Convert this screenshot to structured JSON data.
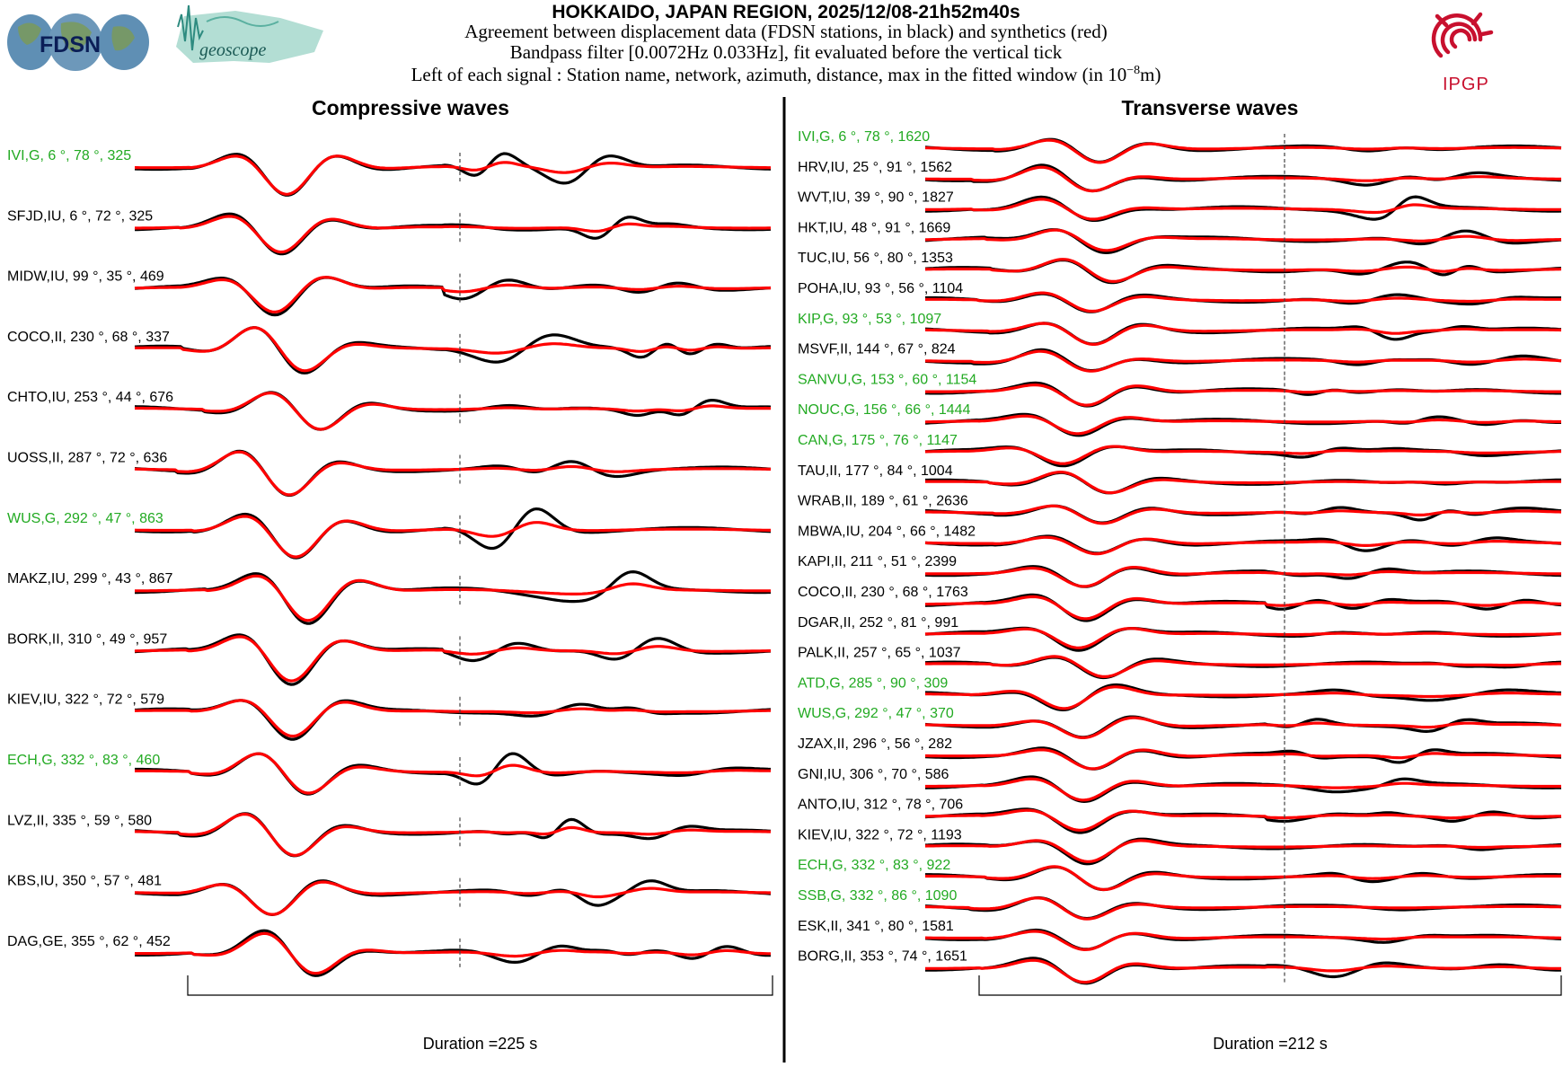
{
  "header": {
    "title": "HOKKAIDO, JAPAN REGION, 2025/12/08-21h52m40s",
    "line1": "Agreement between displacement data (FDSN stations, in black) and synthetics (red)",
    "line2": "Bandpass filter [0.0072Hz 0.033Hz], fit evaluated before the vertical tick",
    "line3_prefix": "Left of each signal : Station name, network, azimuth, distance, max in the fitted window (in 10",
    "line3_exp": "−8",
    "line3_suffix": "m)"
  },
  "logos": {
    "fdsn": "FDSN",
    "geoscope": "geoscope",
    "ipgp": "IPGP"
  },
  "colors": {
    "data": "#000000",
    "synthetic": "#ff0000",
    "green_label": "#22aa22",
    "black_label": "#000000",
    "ipgp": "#c8102e"
  },
  "chart_data": [
    {
      "type": "line",
      "title": "Compressive waves",
      "duration_label": "Duration =225 s",
      "duration_s": 225,
      "series_names": [
        "data (black)",
        "synthetics (red)"
      ],
      "stations": [
        {
          "label": "IVI,G, 6 °, 78 °, 325",
          "name": "IVI",
          "network": "G",
          "azimuth": 6,
          "distance": 78,
          "max": 325,
          "green": true
        },
        {
          "label": "SFJD,IU, 6 °, 72 °, 325",
          "name": "SFJD",
          "network": "IU",
          "azimuth": 6,
          "distance": 72,
          "max": 325,
          "green": false
        },
        {
          "label": "MIDW,IU, 99 °, 35 °, 469",
          "name": "MIDW",
          "network": "IU",
          "azimuth": 99,
          "distance": 35,
          "max": 469,
          "green": false
        },
        {
          "label": "COCO,II, 230 °, 68 °, 337",
          "name": "COCO",
          "network": "II",
          "azimuth": 230,
          "distance": 68,
          "max": 337,
          "green": false
        },
        {
          "label": "CHTO,IU, 253 °, 44 °, 676",
          "name": "CHTO",
          "network": "IU",
          "azimuth": 253,
          "distance": 44,
          "max": 676,
          "green": false
        },
        {
          "label": "UOSS,II, 287 °, 72 °, 636",
          "name": "UOSS",
          "network": "II",
          "azimuth": 287,
          "distance": 72,
          "max": 636,
          "green": false
        },
        {
          "label": "WUS,G, 292 °, 47 °, 863",
          "name": "WUS",
          "network": "G",
          "azimuth": 292,
          "distance": 47,
          "max": 863,
          "green": true
        },
        {
          "label": "MAKZ,IU, 299 °, 43 °, 867",
          "name": "MAKZ",
          "network": "IU",
          "azimuth": 299,
          "distance": 43,
          "max": 867,
          "green": false
        },
        {
          "label": "BORK,II, 310 °, 49 °, 957",
          "name": "BORK",
          "network": "II",
          "azimuth": 310,
          "distance": 49,
          "max": 957,
          "green": false
        },
        {
          "label": "KIEV,IU, 322 °, 72 °, 579",
          "name": "KIEV",
          "network": "IU",
          "azimuth": 322,
          "distance": 72,
          "max": 579,
          "green": false
        },
        {
          "label": "ECH,G, 332 °, 83 °, 460",
          "name": "ECH",
          "network": "G",
          "azimuth": 332,
          "distance": 83,
          "max": 460,
          "green": true
        },
        {
          "label": "LVZ,II, 335 °, 59 °, 580",
          "name": "LVZ",
          "network": "II",
          "azimuth": 335,
          "distance": 59,
          "max": 580,
          "green": false
        },
        {
          "label": "KBS,IU, 350 °, 57 °, 481",
          "name": "KBS",
          "network": "IU",
          "azimuth": 350,
          "distance": 57,
          "max": 481,
          "green": false
        },
        {
          "label": "DAG,GE, 355 °, 62 °, 452",
          "name": "DAG",
          "network": "GE",
          "azimuth": 355,
          "distance": 62,
          "max": 452,
          "green": false
        }
      ]
    },
    {
      "type": "line",
      "title": "Transverse waves",
      "duration_label": "Duration =212 s",
      "duration_s": 212,
      "series_names": [
        "data (black)",
        "synthetics (red)"
      ],
      "stations": [
        {
          "label": "IVI,G, 6 °, 78 °, 1620",
          "name": "IVI",
          "network": "G",
          "azimuth": 6,
          "distance": 78,
          "max": 1620,
          "green": true
        },
        {
          "label": "HRV,IU, 25 °, 91 °, 1562",
          "name": "HRV",
          "network": "IU",
          "azimuth": 25,
          "distance": 91,
          "max": 1562,
          "green": false
        },
        {
          "label": "WVT,IU, 39 °, 90 °, 1827",
          "name": "WVT",
          "network": "IU",
          "azimuth": 39,
          "distance": 90,
          "max": 1827,
          "green": false
        },
        {
          "label": "HKT,IU, 48 °, 91 °, 1669",
          "name": "HKT",
          "network": "IU",
          "azimuth": 48,
          "distance": 91,
          "max": 1669,
          "green": false
        },
        {
          "label": "TUC,IU, 56 °, 80 °, 1353",
          "name": "TUC",
          "network": "IU",
          "azimuth": 56,
          "distance": 80,
          "max": 1353,
          "green": false
        },
        {
          "label": "POHA,IU, 93 °, 56 °, 1104",
          "name": "POHA",
          "network": "IU",
          "azimuth": 93,
          "distance": 56,
          "max": 1104,
          "green": false
        },
        {
          "label": "KIP,G, 93 °, 53 °, 1097",
          "name": "KIP",
          "network": "G",
          "azimuth": 93,
          "distance": 53,
          "max": 1097,
          "green": true
        },
        {
          "label": "MSVF,II, 144 °, 67 °, 824",
          "name": "MSVF",
          "network": "II",
          "azimuth": 144,
          "distance": 67,
          "max": 824,
          "green": false
        },
        {
          "label": "SANVU,G, 153 °, 60 °, 1154",
          "name": "SANVU",
          "network": "G",
          "azimuth": 153,
          "distance": 60,
          "max": 1154,
          "green": true
        },
        {
          "label": "NOUC,G, 156 °, 66 °, 1444",
          "name": "NOUC",
          "network": "G",
          "azimuth": 156,
          "distance": 66,
          "max": 1444,
          "green": true
        },
        {
          "label": "CAN,G, 175 °, 76 °, 1147",
          "name": "CAN",
          "network": "G",
          "azimuth": 175,
          "distance": 76,
          "max": 1147,
          "green": true
        },
        {
          "label": "TAU,II, 177 °, 84 °, 1004",
          "name": "TAU",
          "network": "II",
          "azimuth": 177,
          "distance": 84,
          "max": 1004,
          "green": false
        },
        {
          "label": "WRAB,II, 189 °, 61 °, 2636",
          "name": "WRAB",
          "network": "II",
          "azimuth": 189,
          "distance": 61,
          "max": 2636,
          "green": false
        },
        {
          "label": "MBWA,IU, 204 °, 66 °, 1482",
          "name": "MBWA",
          "network": "IU",
          "azimuth": 204,
          "distance": 66,
          "max": 1482,
          "green": false
        },
        {
          "label": "KAPI,II, 211 °, 51 °, 2399",
          "name": "KAPI",
          "network": "II",
          "azimuth": 211,
          "distance": 51,
          "max": 2399,
          "green": false
        },
        {
          "label": "COCO,II, 230 °, 68 °, 1763",
          "name": "COCO",
          "network": "II",
          "azimuth": 230,
          "distance": 68,
          "max": 1763,
          "green": false
        },
        {
          "label": "DGAR,II, 252 °, 81 °, 991",
          "name": "DGAR",
          "network": "II",
          "azimuth": 252,
          "distance": 81,
          "max": 991,
          "green": false
        },
        {
          "label": "PALK,II, 257 °, 65 °, 1037",
          "name": "PALK",
          "network": "II",
          "azimuth": 257,
          "distance": 65,
          "max": 1037,
          "green": false
        },
        {
          "label": "ATD,G, 285 °, 90 °, 309",
          "name": "ATD",
          "network": "G",
          "azimuth": 285,
          "distance": 90,
          "max": 309,
          "green": true
        },
        {
          "label": "WUS,G, 292 °, 47 °, 370",
          "name": "WUS",
          "network": "G",
          "azimuth": 292,
          "distance": 47,
          "max": 370,
          "green": true
        },
        {
          "label": "JZAX,II, 296 °, 56 °, 282",
          "name": "JZAX",
          "network": "II",
          "azimuth": 296,
          "distance": 56,
          "max": 282,
          "green": false
        },
        {
          "label": "GNI,IU, 306 °, 70 °, 586",
          "name": "GNI",
          "network": "IU",
          "azimuth": 306,
          "distance": 70,
          "max": 586,
          "green": false
        },
        {
          "label": "ANTO,IU, 312 °, 78 °, 706",
          "name": "ANTO",
          "network": "IU",
          "azimuth": 312,
          "distance": 78,
          "max": 706,
          "green": false
        },
        {
          "label": "KIEV,IU, 322 °, 72 °, 1193",
          "name": "KIEV",
          "network": "IU",
          "azimuth": 322,
          "distance": 72,
          "max": 1193,
          "green": false
        },
        {
          "label": "ECH,G, 332 °, 83 °, 922",
          "name": "ECH",
          "network": "G",
          "azimuth": 332,
          "distance": 83,
          "max": 922,
          "green": true
        },
        {
          "label": "SSB,G, 332 °, 86 °, 1090",
          "name": "SSB",
          "network": "G",
          "azimuth": 332,
          "distance": 86,
          "max": 1090,
          "green": true
        },
        {
          "label": "ESK,II, 341 °, 80 °, 1581",
          "name": "ESK",
          "network": "II",
          "azimuth": 341,
          "distance": 80,
          "max": 1581,
          "green": false
        },
        {
          "label": "BORG,II, 353 °, 74 °, 1651",
          "name": "BORG",
          "network": "II",
          "azimuth": 353,
          "distance": 74,
          "max": 1651,
          "green": false
        }
      ]
    }
  ]
}
